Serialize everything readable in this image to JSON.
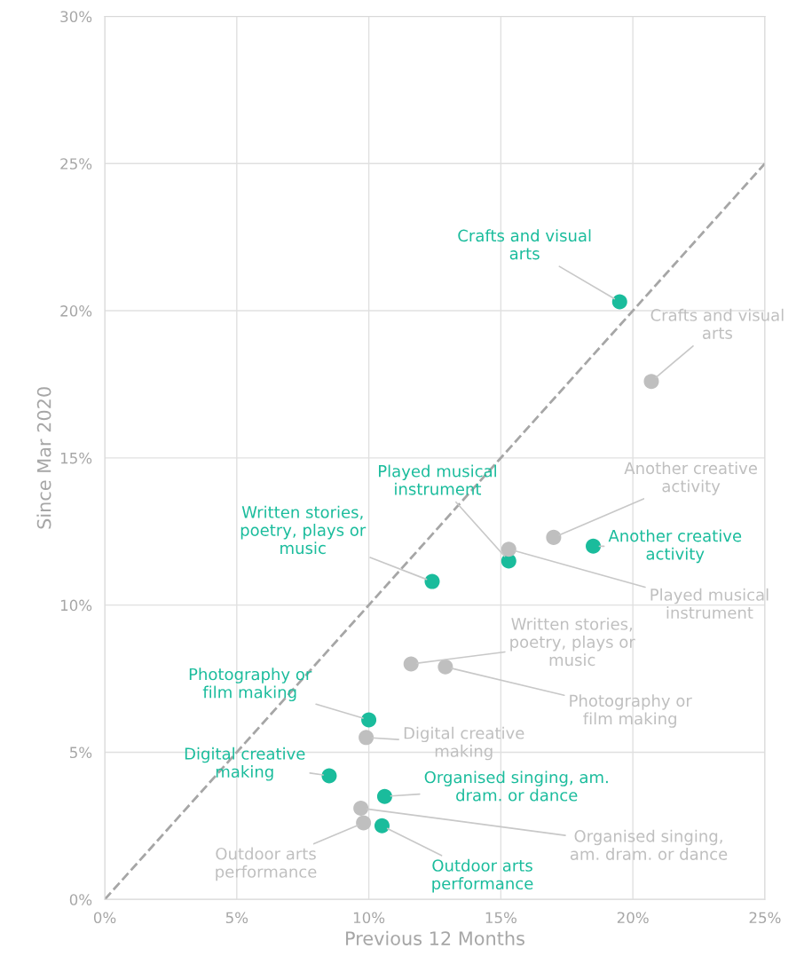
{
  "chart_data": {
    "type": "scatter",
    "xlabel": "Previous 12 Months",
    "ylabel": "Since Mar 2020",
    "xlim": [
      0,
      25
    ],
    "ylim": [
      0,
      30
    ],
    "xticks": [
      {
        "value": 0,
        "label": "0%"
      },
      {
        "value": 5,
        "label": "5%"
      },
      {
        "value": 10,
        "label": "10%"
      },
      {
        "value": 15,
        "label": "15%"
      },
      {
        "value": 20,
        "label": "20%"
      },
      {
        "value": 25,
        "label": "25%"
      }
    ],
    "yticks": [
      {
        "value": 0,
        "label": "0%"
      },
      {
        "value": 5,
        "label": "5%"
      },
      {
        "value": 10,
        "label": "10%"
      },
      {
        "value": 15,
        "label": "15%"
      },
      {
        "value": 20,
        "label": "20%"
      },
      {
        "value": 25,
        "label": "25%"
      },
      {
        "value": 30,
        "label": "30%"
      }
    ],
    "grid": true,
    "legend": false,
    "marker": "circle",
    "series": [
      {
        "color": "#1abc9c",
        "x": [
          19.5,
          18.5,
          15.3,
          12.4,
          10.0,
          8.5,
          10.6,
          10.5
        ],
        "values": [
          20.3,
          12.0,
          11.5,
          10.8,
          6.1,
          4.2,
          3.5,
          2.5
        ]
      },
      {
        "color": "#bfbfbf",
        "x": [
          20.7,
          17.0,
          15.3,
          11.6,
          12.9,
          9.9,
          9.7,
          9.8
        ],
        "values": [
          17.6,
          12.3,
          11.9,
          8.0,
          7.9,
          5.5,
          3.1,
          2.6
        ]
      },
      {
        "type": "line",
        "color": "#a6a6a6",
        "line_style": "dashed",
        "marker": "none",
        "x": [
          0,
          25
        ],
        "values": [
          0,
          25
        ]
      }
    ],
    "annotations": [
      {
        "text": "Crafts and visual\narts",
        "x": 19.5,
        "y": 20.3
      },
      {
        "text": "Another creative\nactivity",
        "x": 18.5,
        "y": 12.0
      },
      {
        "text": "Played musical\ninstrument",
        "x": 15.3,
        "y": 11.5
      },
      {
        "text": "Written stories,\npoetry, plays or\nmusic",
        "x": 12.4,
        "y": 10.8
      },
      {
        "text": "Photography or\nfilm making",
        "x": 10.0,
        "y": 6.1
      },
      {
        "text": "Digital creative\nmaking",
        "x": 8.5,
        "y": 4.2
      },
      {
        "text": "Organised singing, am.\ndram. or dance",
        "x": 10.6,
        "y": 3.5
      },
      {
        "text": "Outdoor arts\nperformance",
        "x": 10.5,
        "y": 2.5
      },
      {
        "text": "Crafts and visual\narts",
        "x": 20.7,
        "y": 17.6
      },
      {
        "text": "Another creative\nactivity",
        "x": 17.0,
        "y": 12.3
      },
      {
        "text": "Played musical\ninstrument",
        "x": 15.3,
        "y": 11.9
      },
      {
        "text": "Written stories,\npoetry, plays or\nmusic",
        "x": 11.6,
        "y": 8.0
      },
      {
        "text": "Photography or\nfilm making",
        "x": 12.9,
        "y": 7.9
      },
      {
        "text": "Digital creative\nmaking",
        "x": 9.9,
        "y": 5.5
      },
      {
        "text": "Organised singing,\nam. dram. or dance",
        "x": 9.7,
        "y": 3.1
      },
      {
        "text": "Outdoor arts\nperformance",
        "x": 9.8,
        "y": 2.6
      }
    ]
  }
}
